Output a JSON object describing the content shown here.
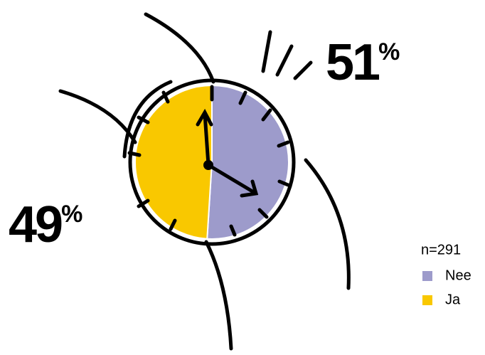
{
  "chart_data": {
    "type": "pie",
    "categories": [
      "Nee",
      "Ja"
    ],
    "values": [
      51,
      49
    ],
    "value_labels": [
      "51%",
      "49%"
    ],
    "colors": [
      "#9d9bcb",
      "#f9c800"
    ],
    "note": "n=291"
  }
}
